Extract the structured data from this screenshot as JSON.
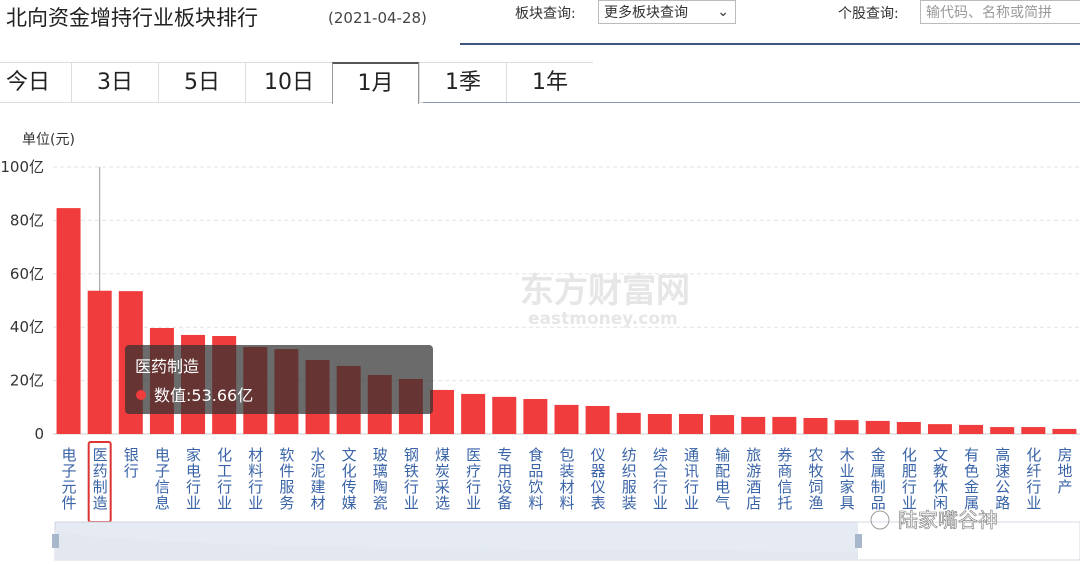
{
  "header": {
    "title": "北向资金增持行业板块排行",
    "date": "(2021-04-28)",
    "sector_query_label": "板块查询:",
    "sector_select": "更多板块查询",
    "stock_query_label": "个股查询:",
    "stock_input_placeholder": "输代码、名称或简拼"
  },
  "tabs": [
    {
      "label": "今日",
      "active": false
    },
    {
      "label": "3日",
      "active": false
    },
    {
      "label": "5日",
      "active": false
    },
    {
      "label": "10日",
      "active": false
    },
    {
      "label": "1月",
      "active": true
    },
    {
      "label": "1季",
      "active": false
    },
    {
      "label": "1年",
      "active": false
    }
  ],
  "chart_data": {
    "type": "bar",
    "unit_label": "单位(元)",
    "color": "#f03c3c",
    "grid": true,
    "categories": [
      "电子元件",
      "医药制造",
      "银行",
      "电子信息",
      "家电行业",
      "化工行业",
      "材料行业",
      "软件服务",
      "水泥建材",
      "文化传媒",
      "玻璃陶瓷",
      "钢铁行业",
      "煤炭采选",
      "医疗行业",
      "专用设备",
      "食品饮料",
      "包装材料",
      "仪器仪表",
      "纺织服装",
      "综合行业",
      "通讯行业",
      "输配电气",
      "旅游酒店",
      "券商信托",
      "农牧饲渔",
      "木业家具",
      "金属制品",
      "化肥行业",
      "文教休闲",
      "有色金属",
      "高速公路",
      "化纤行业",
      "房地产"
    ],
    "values": [
      84.6,
      53.66,
      53.5,
      39.7,
      37.1,
      36.7,
      32.6,
      31.8,
      27.7,
      25.5,
      22.1,
      20.6,
      16.5,
      15.0,
      13.9,
      13.1,
      10.9,
      10.5,
      7.9,
      7.5,
      7.5,
      7.1,
      6.4,
      6.4,
      6.0,
      5.2,
      4.9,
      4.5,
      3.7,
      3.4,
      2.6,
      2.6,
      1.9
    ],
    "ylim": [
      0,
      100
    ],
    "yticks": [
      0,
      {
        "value": 20,
        "label": "20亿"
      },
      {
        "value": 40,
        "label": "40亿"
      },
      {
        "value": 60,
        "label": "60亿"
      },
      {
        "value": 80,
        "label": "80亿"
      },
      {
        "value": 100,
        "label": "100亿"
      }
    ],
    "tooltip": {
      "title": "医药制造",
      "text": "数值:53.66亿"
    }
  },
  "watermarks": {
    "site_name": "东方财富网",
    "site_url": "eastmoney.com",
    "account": "陆家嘴谷神"
  }
}
